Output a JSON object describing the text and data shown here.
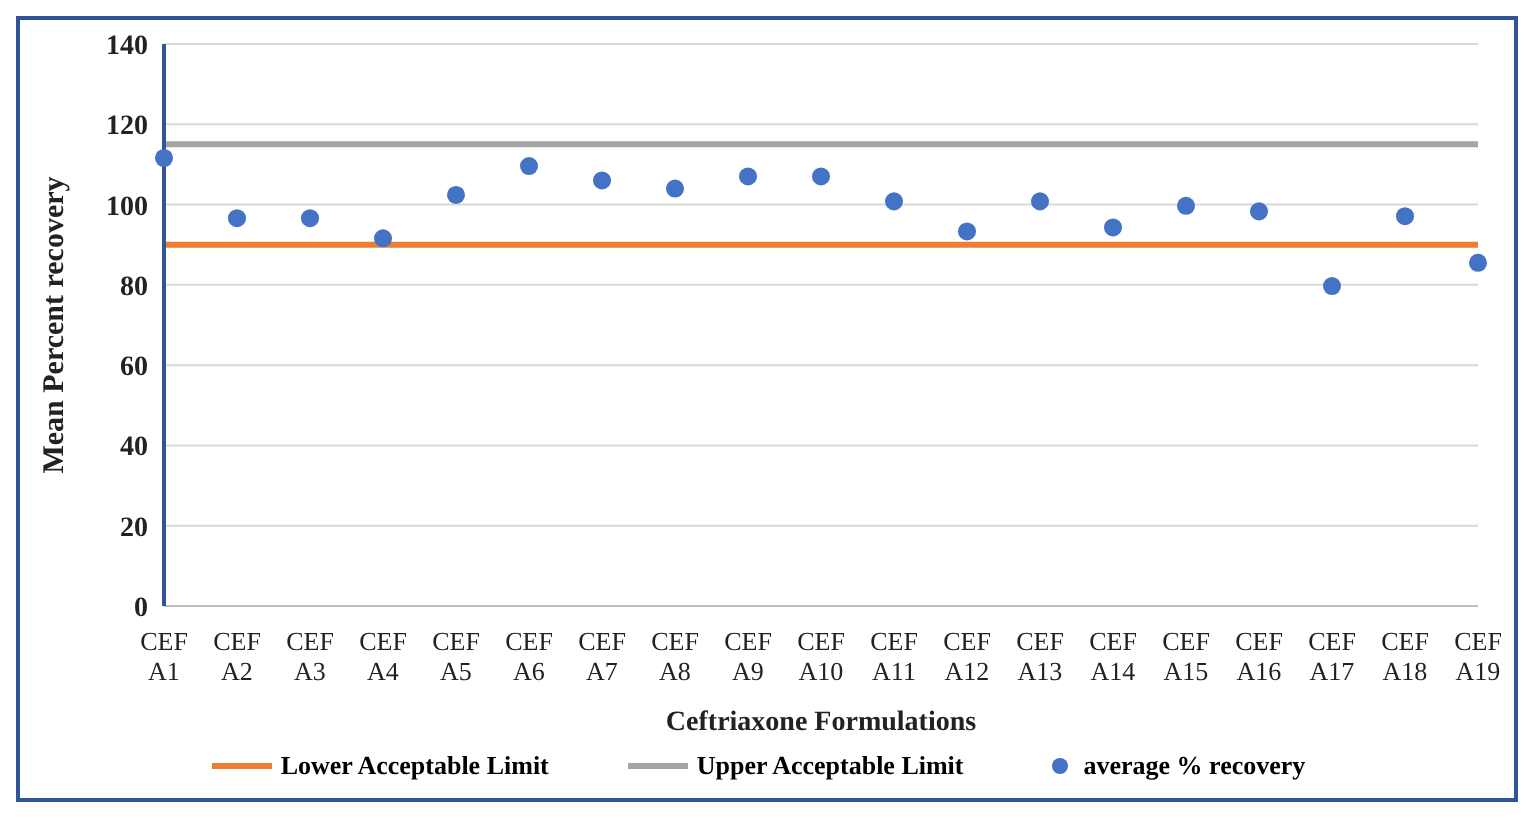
{
  "chart_data": {
    "type": "scatter",
    "xlabel": "Ceftriaxone Formulations",
    "ylabel": "Mean Percent recovery",
    "categories": [
      "CEF A1",
      "CEF A2",
      "CEF A3",
      "CEF A4",
      "CEF A5",
      "CEF A6",
      "CEF A7",
      "CEF A8",
      "CEF A9",
      "CEF A10",
      "CEF A11",
      "CEF A12",
      "CEF A13",
      "CEF A14",
      "CEF A15",
      "CEF A16",
      "CEF A17",
      "CEF A18",
      "CEF A19"
    ],
    "ylim": [
      0,
      140
    ],
    "yticks": [
      0,
      20,
      40,
      60,
      80,
      100,
      120,
      140
    ],
    "grid": "y",
    "legend": "bottom",
    "series": [
      {
        "name": "Lower Acceptable Limit",
        "type": "line",
        "marker": "none",
        "color": "#ed7d31",
        "values": [
          90,
          90,
          90,
          90,
          90,
          90,
          90,
          90,
          90,
          90,
          90,
          90,
          90,
          90,
          90,
          90,
          90,
          90,
          90
        ]
      },
      {
        "name": "Upper Acceptable Limit",
        "type": "line",
        "marker": "none",
        "color": "#a5a5a5",
        "values": [
          115,
          115,
          115,
          115,
          115,
          115,
          115,
          115,
          115,
          115,
          115,
          115,
          115,
          115,
          115,
          115,
          115,
          115,
          115
        ]
      },
      {
        "name": "average % recovery",
        "marker": "circle",
        "color": "#4472c4",
        "values": [
          111.6,
          96.6,
          96.6,
          91.6,
          102.4,
          109.6,
          106,
          104,
          107,
          107,
          100.8,
          93.3,
          100.8,
          94.3,
          99.7,
          98.3,
          79.7,
          97.1,
          85.5
        ]
      }
    ]
  }
}
